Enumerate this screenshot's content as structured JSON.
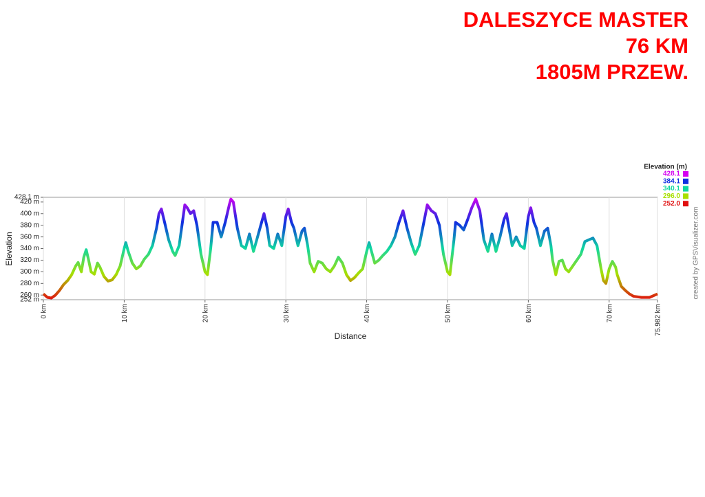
{
  "chart_data": {
    "type": "line",
    "title_lines": [
      "DALESZYCE MASTER",
      "76 KM",
      "1805M PRZEW."
    ],
    "xlabel": "Distance",
    "ylabel": "Elevation",
    "credit": "created by GPSVisualizer.com",
    "legend_title": "Elevation (m)",
    "legend": [
      {
        "value": 428.1,
        "color": "#d400f0"
      },
      {
        "value": 384.1,
        "color": "#1030e0"
      },
      {
        "value": 340.1,
        "color": "#10d8a0"
      },
      {
        "value": 296,
        "label": "296.0",
        "color": "#a8e000"
      },
      {
        "value": 252,
        "label": "252.0",
        "color": "#e01010"
      }
    ],
    "grid": true,
    "xlim": [
      0,
      75.982
    ],
    "ylim": [
      252,
      428.1
    ],
    "xticks": [
      {
        "value": 0,
        "label": "0 km"
      },
      {
        "value": 10,
        "label": "10 km"
      },
      {
        "value": 20,
        "label": "20 km"
      },
      {
        "value": 30,
        "label": "30 km"
      },
      {
        "value": 40,
        "label": "40 km"
      },
      {
        "value": 50,
        "label": "50 km"
      },
      {
        "value": 60,
        "label": "60 km"
      },
      {
        "value": 70,
        "label": "70 km"
      },
      {
        "value": 75.982,
        "label": "75.982 km"
      }
    ],
    "yticks": [
      {
        "value": 252,
        "label": "252 m"
      },
      {
        "value": 260,
        "label": "260 m"
      },
      {
        "value": 280,
        "label": "280 m"
      },
      {
        "value": 300,
        "label": "300 m"
      },
      {
        "value": 320,
        "label": "320 m"
      },
      {
        "value": 340,
        "label": "340 m"
      },
      {
        "value": 360,
        "label": "360 m"
      },
      {
        "value": 380,
        "label": "380 m"
      },
      {
        "value": 400,
        "label": "400 m"
      },
      {
        "value": 420,
        "label": "420 m"
      },
      {
        "value": 428.1,
        "label": "428.1 m"
      }
    ],
    "x": [
      0,
      0.5,
      1,
      1.5,
      2,
      2.5,
      3,
      3.5,
      4,
      4.3,
      4.7,
      5,
      5.3,
      5.6,
      5.9,
      6.3,
      6.7,
      7,
      7.5,
      8,
      8.5,
      9,
      9.5,
      10,
      10.2,
      10.5,
      11,
      11.5,
      12,
      12.5,
      13,
      13.5,
      14,
      14.3,
      14.6,
      15,
      15.5,
      16,
      16.3,
      16.8,
      17.2,
      17.5,
      17.8,
      18.2,
      18.6,
      19,
      19.5,
      20,
      20.3,
      20.7,
      21,
      21.5,
      22,
      22.5,
      23,
      23.2,
      23.5,
      24,
      24.5,
      25,
      25.5,
      26,
      26.5,
      27,
      27.3,
      27.7,
      28,
      28.5,
      29,
      29.5,
      30,
      30.3,
      30.7,
      31,
      31.5,
      32,
      32.3,
      32.7,
      33,
      33.5,
      34,
      34.5,
      35,
      35.5,
      36,
      36.5,
      37,
      37.5,
      38,
      38.5,
      39,
      39.5,
      40,
      40.3,
      40.7,
      41,
      41.5,
      42,
      42.5,
      43,
      43.5,
      44,
      44.5,
      45,
      45.5,
      46,
      46.5,
      47,
      47.5,
      48,
      48.5,
      49,
      49.5,
      50,
      50.3,
      50.8,
      51,
      51.5,
      52,
      52.5,
      53,
      53.5,
      54,
      54.5,
      55,
      55.5,
      56,
      56.5,
      57,
      57.3,
      57.8,
      58,
      58.5,
      59,
      59.5,
      60,
      60.3,
      60.7,
      61,
      61.5,
      62,
      62.4,
      62.8,
      63,
      63.4,
      63.8,
      64.2,
      64.6,
      65,
      65.5,
      66,
      66.5,
      67,
      67.5,
      68,
      68.5,
      69,
      69.3,
      69.6,
      70,
      70.4,
      70.8,
      71,
      71.5,
      72,
      72.5,
      73,
      74,
      75,
      75.982
    ],
    "series": [
      {
        "name": "Elevation",
        "values": [
          262,
          256,
          255,
          260,
          268,
          278,
          285,
          295,
          310,
          316,
          300,
          325,
          338,
          320,
          300,
          296,
          315,
          308,
          292,
          284,
          286,
          295,
          310,
          340,
          350,
          335,
          315,
          305,
          310,
          322,
          330,
          345,
          375,
          400,
          408,
          385,
          355,
          335,
          328,
          345,
          385,
          415,
          410,
          400,
          405,
          380,
          330,
          300,
          295,
          340,
          385,
          385,
          360,
          385,
          415,
          425,
          420,
          375,
          345,
          340,
          365,
          335,
          360,
          385,
          400,
          375,
          345,
          340,
          365,
          345,
          395,
          408,
          385,
          375,
          345,
          370,
          375,
          345,
          315,
          300,
          318,
          315,
          305,
          300,
          310,
          325,
          315,
          295,
          285,
          290,
          298,
          305,
          335,
          350,
          330,
          315,
          320,
          328,
          335,
          345,
          360,
          385,
          405,
          375,
          350,
          330,
          345,
          380,
          415,
          405,
          400,
          380,
          330,
          300,
          295,
          355,
          385,
          380,
          372,
          390,
          410,
          425,
          405,
          355,
          335,
          365,
          335,
          360,
          390,
          400,
          360,
          345,
          360,
          345,
          340,
          395,
          410,
          385,
          375,
          345,
          370,
          375,
          345,
          320,
          295,
          318,
          320,
          305,
          300,
          310,
          320,
          330,
          352,
          355,
          358,
          345,
          305,
          285,
          280,
          305,
          318,
          308,
          295,
          275,
          268,
          262,
          258,
          256,
          256,
          262
        ]
      }
    ]
  }
}
